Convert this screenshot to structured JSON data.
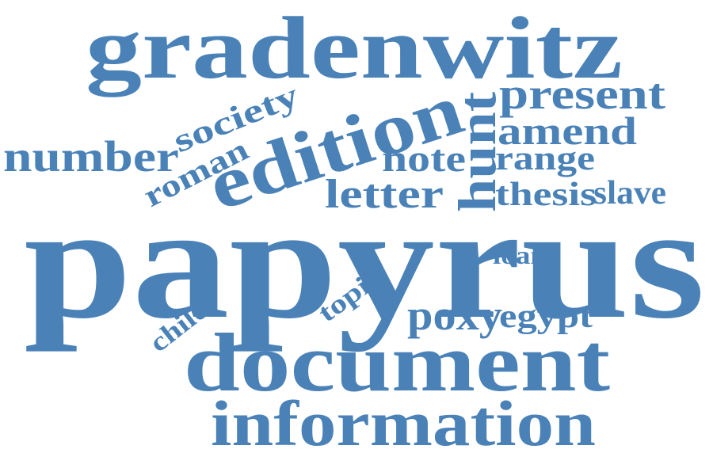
{
  "word_cloud": {
    "color": "#4a82b8",
    "background": "#ffffff",
    "words": {
      "papyrus": "papyrus",
      "gradenwitz": "gradenwitz",
      "document": "document",
      "edition": "edition",
      "information": "information",
      "present": "present",
      "hunt": "hunt",
      "number": "number",
      "amend": "amend",
      "society": "society",
      "roman": "roman",
      "note": "note",
      "range": "range",
      "letter": "letter",
      "thesis": "thesis",
      "slave": "slave",
      "poxy": "poxy",
      "egypt": "egypt",
      "loan": "loan",
      "topic": "topic",
      "child": "child"
    }
  }
}
